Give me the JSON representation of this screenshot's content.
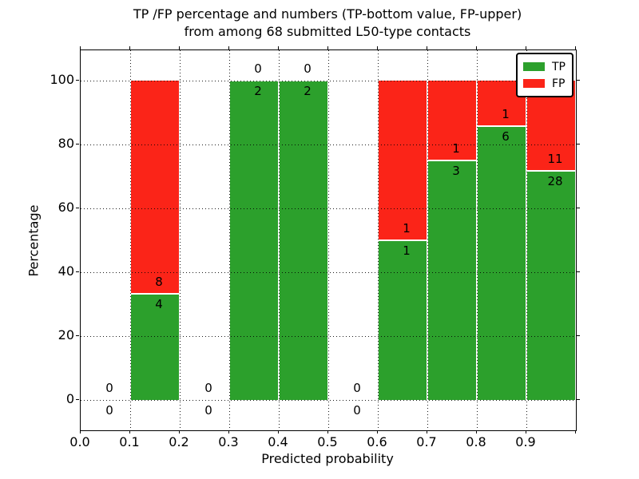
{
  "title": {
    "line1": "TP /FP percentage and numbers (TP-bottom value, FP-upper)",
    "line2": "from among 68 submitted L50-type contacts"
  },
  "axes": {
    "xlabel": "Predicted probability",
    "ylabel": "Percentage",
    "x_ticks": [
      {
        "value": 0.0,
        "label": "0.0"
      },
      {
        "value": 0.1,
        "label": "0.1"
      },
      {
        "value": 0.2,
        "label": "0.2"
      },
      {
        "value": 0.3,
        "label": "0.3"
      },
      {
        "value": 0.4,
        "label": "0.4"
      },
      {
        "value": 0.5,
        "label": "0.5"
      },
      {
        "value": 0.6,
        "label": "0.6"
      },
      {
        "value": 0.7,
        "label": "0.7"
      },
      {
        "value": 0.8,
        "label": "0.8"
      },
      {
        "value": 0.9,
        "label": "0.9"
      },
      {
        "value": 1.0,
        "label": ""
      }
    ],
    "y_ticks": [
      {
        "value": 0,
        "label": "0"
      },
      {
        "value": 20,
        "label": "20"
      },
      {
        "value": 40,
        "label": "40"
      },
      {
        "value": 60,
        "label": "60"
      },
      {
        "value": 80,
        "label": "80"
      },
      {
        "value": 100,
        "label": "100"
      }
    ],
    "xlim": [
      0.0,
      1.0
    ],
    "ylim": [
      0,
      100
    ],
    "grid": "dotted"
  },
  "legend": {
    "position": "upper-right",
    "entries": [
      {
        "label": "TP",
        "color": "#2ca02c"
      },
      {
        "label": "FP",
        "color": "#fb2418"
      }
    ]
  },
  "colors": {
    "tp": "#2ca02c",
    "fp": "#fb2418",
    "bar_edge": "#ffffff",
    "text": "#000000"
  },
  "chart_data": {
    "type": "bar",
    "subtype": "stacked-percentage-histogram",
    "note": "each bin shows TP% (green, bottom) and FP% (red, top); annotations are raw counts: TP below boundary, FP above",
    "total_contacts": 68,
    "bins": [
      {
        "range": [
          0.0,
          0.1
        ],
        "tp": 0,
        "fp": 0,
        "tp_pct": null
      },
      {
        "range": [
          0.1,
          0.2
        ],
        "tp": 4,
        "fp": 8,
        "tp_pct": 33.3
      },
      {
        "range": [
          0.2,
          0.3
        ],
        "tp": 0,
        "fp": 0,
        "tp_pct": null
      },
      {
        "range": [
          0.3,
          0.4
        ],
        "tp": 2,
        "fp": 0,
        "tp_pct": 100.0
      },
      {
        "range": [
          0.4,
          0.5
        ],
        "tp": 2,
        "fp": 0,
        "tp_pct": 100.0
      },
      {
        "range": [
          0.5,
          0.6
        ],
        "tp": 0,
        "fp": 0,
        "tp_pct": null
      },
      {
        "range": [
          0.6,
          0.7
        ],
        "tp": 1,
        "fp": 1,
        "tp_pct": 50.0
      },
      {
        "range": [
          0.7,
          0.8
        ],
        "tp": 3,
        "fp": 1,
        "tp_pct": 75.0
      },
      {
        "range": [
          0.8,
          0.9
        ],
        "tp": 6,
        "fp": 1,
        "tp_pct": 85.7
      },
      {
        "range": [
          0.9,
          1.0
        ],
        "tp": 28,
        "fp": 11,
        "tp_pct": 71.8
      }
    ]
  }
}
